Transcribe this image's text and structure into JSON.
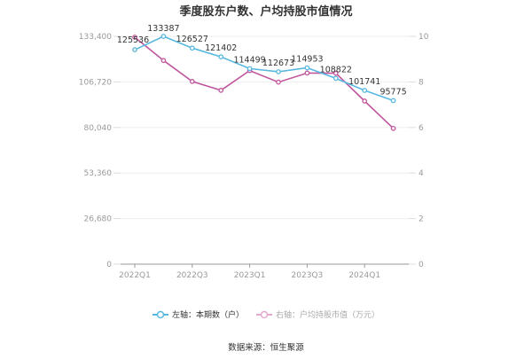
{
  "title": "季度股东户数、户均持股市值情况",
  "legend": {
    "left_label": "左轴：本期数（户）",
    "right_label": "右轴：户均持股市值（万元）"
  },
  "source": "数据来源：恒生聚源",
  "colors": {
    "left_series": "#58b8e0",
    "right_series": "#c0569e",
    "right_legend_faded": "#e3a9cf",
    "grid": "#eeeeee",
    "axis": "#999999"
  },
  "chart_data": {
    "type": "line",
    "title": "季度股东户数、户均持股市值情况",
    "x": [
      "2022Q1",
      "2022Q2",
      "2022Q3",
      "2022Q4",
      "2023Q1",
      "2023Q2",
      "2023Q3",
      "2023Q4",
      "2024Q1",
      "2024Q2"
    ],
    "x_tick_labels": [
      "2022Q1",
      "2022Q3",
      "2023Q1",
      "2023Q3",
      "2024Q1"
    ],
    "y_left": {
      "label": "本期数（户）",
      "ticks": [
        "0",
        "26,680",
        "53,360",
        "80,040",
        "106,720",
        "133,400"
      ],
      "range": [
        0,
        133400
      ]
    },
    "y_right": {
      "label": "户均持股市值（万元）",
      "ticks": [
        "0",
        "2",
        "4",
        "6",
        "8",
        "10"
      ],
      "range": [
        0,
        10
      ]
    },
    "series": [
      {
        "name": "左轴：本期数（户）",
        "axis": "left",
        "values": [
          125536,
          133387,
          126527,
          121402,
          114499,
          112673,
          114953,
          108822,
          101741,
          95775
        ],
        "labels": [
          "125536",
          "133387",
          "126527",
          "121402",
          "114499",
          "112673",
          "114953",
          "108822",
          "101741",
          "95775"
        ]
      },
      {
        "name": "右轴：户均持股市值（万元）",
        "axis": "right",
        "values": [
          9.96,
          8.94,
          8.02,
          7.63,
          8.5,
          7.99,
          8.39,
          8.38,
          7.16,
          5.96
        ]
      }
    ],
    "grid": true,
    "legend_position": "bottom"
  }
}
